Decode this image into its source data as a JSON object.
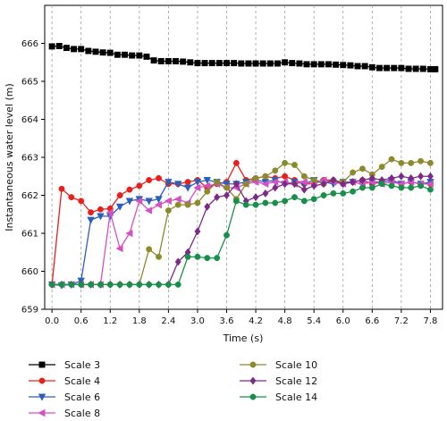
{
  "chart_data": {
    "type": "line",
    "title": "",
    "xlabel": "Time (s)",
    "ylabel": "Instantaneous water level (m)",
    "xlim": [
      -0.15,
      8.05
    ],
    "ylim": [
      659,
      667
    ],
    "xticks": [
      "0.0",
      "0.6",
      "1.2",
      "1.8",
      "2.4",
      "3.0",
      "3.6",
      "4.2",
      "4.8",
      "5.4",
      "6.0",
      "6.6",
      "7.2",
      "7.8"
    ],
    "yticks": [
      "659",
      "660",
      "661",
      "662",
      "663",
      "664",
      "665",
      "666"
    ],
    "grid": "vertical dashed",
    "legend_position": "bottom",
    "series": [
      {
        "name": "Scale 3",
        "color": "#000000",
        "marker": "square",
        "x": [
          0.0,
          0.15,
          0.3,
          0.45,
          0.6,
          0.75,
          0.9,
          1.05,
          1.2,
          1.35,
          1.5,
          1.65,
          1.8,
          1.95,
          2.1,
          2.25,
          2.4,
          2.55,
          2.7,
          2.85,
          3.0,
          3.15,
          3.3,
          3.45,
          3.6,
          3.75,
          3.9,
          4.05,
          4.2,
          4.35,
          4.5,
          4.65,
          4.8,
          4.95,
          5.1,
          5.25,
          5.4,
          5.55,
          5.7,
          5.85,
          6.0,
          6.15,
          6.3,
          6.45,
          6.6,
          6.75,
          6.9,
          7.05,
          7.2,
          7.35,
          7.5,
          7.65,
          7.8,
          7.9
        ],
        "y": [
          665.92,
          665.93,
          665.88,
          665.85,
          665.85,
          665.8,
          665.78,
          665.76,
          665.75,
          665.7,
          665.7,
          665.68,
          665.68,
          665.65,
          665.55,
          665.53,
          665.53,
          665.53,
          665.52,
          665.5,
          665.48,
          665.48,
          665.48,
          665.48,
          665.48,
          665.48,
          665.47,
          665.47,
          665.47,
          665.47,
          665.47,
          665.47,
          665.5,
          665.48,
          665.47,
          665.45,
          665.45,
          665.45,
          665.45,
          665.44,
          665.43,
          665.42,
          665.4,
          665.4,
          665.37,
          665.35,
          665.35,
          665.35,
          665.35,
          665.33,
          665.33,
          665.33,
          665.32,
          665.32
        ]
      },
      {
        "name": "Scale 4",
        "color": "#e8201c",
        "marker": "circle",
        "x": [
          0.0,
          0.2,
          0.4,
          0.6,
          0.8,
          1.0,
          1.2,
          1.4,
          1.6,
          1.8,
          2.0,
          2.2,
          2.4,
          2.6,
          2.8,
          3.0,
          3.2,
          3.4,
          3.6,
          3.8,
          4.0,
          4.2,
          4.4,
          4.6,
          4.8,
          5.0,
          5.2,
          5.4,
          5.6,
          5.8,
          6.0,
          6.2,
          6.4,
          6.6,
          6.8,
          7.0,
          7.2,
          7.4,
          7.6,
          7.8
        ],
        "y": [
          659.65,
          662.17,
          661.95,
          661.85,
          661.55,
          661.63,
          661.65,
          662.0,
          662.15,
          662.25,
          662.4,
          662.45,
          662.3,
          662.3,
          662.35,
          662.4,
          662.2,
          662.3,
          662.35,
          662.85,
          662.4,
          662.45,
          662.5,
          662.45,
          662.5,
          662.4,
          662.3,
          662.3,
          662.4,
          662.4,
          662.3,
          662.35,
          662.4,
          662.3,
          662.35,
          662.4,
          662.3,
          662.35,
          662.3,
          662.3
        ]
      },
      {
        "name": "Scale 6",
        "color": "#2b5fbd",
        "marker": "triangle-down",
        "x": [
          0.0,
          0.2,
          0.4,
          0.6,
          0.8,
          1.0,
          1.2,
          1.4,
          1.6,
          1.8,
          2.0,
          2.2,
          2.4,
          2.6,
          2.8,
          3.0,
          3.2,
          3.4,
          3.6,
          3.8,
          4.0,
          4.2,
          4.4,
          4.6,
          4.8,
          5.0,
          5.2,
          5.4,
          5.6,
          5.8,
          6.0,
          6.2,
          6.4,
          6.6,
          6.8,
          7.0,
          7.2,
          7.4,
          7.6,
          7.8
        ],
        "y": [
          659.65,
          659.63,
          659.65,
          659.75,
          661.35,
          661.45,
          661.45,
          661.7,
          661.85,
          661.9,
          661.85,
          661.9,
          662.35,
          662.3,
          662.2,
          662.35,
          662.4,
          662.35,
          662.3,
          662.3,
          662.35,
          662.4,
          662.35,
          662.4,
          662.3,
          662.35,
          662.3,
          662.4,
          662.35,
          662.3,
          662.35,
          662.35,
          662.3,
          662.35,
          662.35,
          662.4,
          662.3,
          662.35,
          662.3,
          662.35
        ]
      },
      {
        "name": "Scale 8",
        "color": "#d64fc3",
        "marker": "triangle-left",
        "x": [
          0.0,
          0.2,
          0.4,
          0.6,
          0.8,
          1.0,
          1.2,
          1.4,
          1.6,
          1.8,
          2.0,
          2.2,
          2.4,
          2.6,
          2.8,
          3.0,
          3.2,
          3.4,
          3.6,
          3.8,
          4.0,
          4.2,
          4.4,
          4.6,
          4.8,
          5.0,
          5.2,
          5.4,
          5.6,
          5.8,
          6.0,
          6.2,
          6.4,
          6.6,
          6.8,
          7.0,
          7.2,
          7.4,
          7.6,
          7.8
        ],
        "y": [
          659.65,
          659.65,
          659.65,
          659.65,
          659.65,
          659.65,
          661.55,
          660.6,
          661.0,
          661.85,
          661.6,
          661.75,
          661.85,
          661.9,
          661.8,
          662.2,
          662.25,
          662.3,
          662.2,
          662.2,
          662.3,
          662.35,
          662.3,
          662.35,
          662.35,
          662.3,
          662.35,
          662.3,
          662.4,
          662.35,
          662.3,
          662.35,
          662.3,
          662.35,
          662.3,
          662.35,
          662.3,
          662.35,
          662.3,
          662.3
        ]
      },
      {
        "name": "Scale 10",
        "color": "#8c8a2a",
        "marker": "circle",
        "x": [
          0.0,
          0.2,
          0.4,
          0.6,
          0.8,
          1.0,
          1.2,
          1.4,
          1.6,
          1.8,
          2.0,
          2.2,
          2.4,
          2.6,
          2.8,
          3.0,
          3.2,
          3.4,
          3.6,
          3.8,
          4.0,
          4.2,
          4.4,
          4.6,
          4.8,
          5.0,
          5.2,
          5.4,
          5.6,
          5.8,
          6.0,
          6.2,
          6.4,
          6.6,
          6.8,
          7.0,
          7.2,
          7.4,
          7.6,
          7.8
        ],
        "y": [
          659.65,
          659.65,
          659.65,
          659.65,
          659.65,
          659.65,
          659.65,
          659.65,
          659.65,
          659.65,
          660.58,
          660.38,
          661.6,
          661.75,
          661.75,
          661.8,
          662.1,
          662.35,
          662.2,
          661.9,
          662.3,
          662.45,
          662.5,
          662.65,
          662.85,
          662.8,
          662.5,
          662.4,
          662.3,
          662.4,
          662.35,
          662.6,
          662.7,
          662.55,
          662.75,
          662.95,
          662.85,
          662.85,
          662.9,
          662.85
        ]
      },
      {
        "name": "Scale 12",
        "color": "#7c2a88",
        "marker": "diamond",
        "x": [
          0.0,
          0.2,
          0.4,
          0.6,
          0.8,
          1.0,
          1.2,
          1.4,
          1.6,
          1.8,
          2.0,
          2.2,
          2.4,
          2.6,
          2.8,
          3.0,
          3.2,
          3.4,
          3.6,
          3.8,
          4.0,
          4.2,
          4.4,
          4.6,
          4.8,
          5.0,
          5.2,
          5.4,
          5.6,
          5.8,
          6.0,
          6.2,
          6.4,
          6.6,
          6.8,
          7.0,
          7.2,
          7.4,
          7.6,
          7.8
        ],
        "y": [
          659.65,
          659.65,
          659.65,
          659.65,
          659.65,
          659.65,
          659.65,
          659.65,
          659.65,
          659.65,
          659.65,
          659.65,
          659.65,
          660.25,
          660.5,
          661.05,
          661.7,
          661.95,
          662.0,
          662.3,
          661.85,
          661.95,
          662.05,
          662.2,
          662.3,
          662.3,
          662.15,
          662.25,
          662.3,
          662.4,
          662.3,
          662.35,
          662.4,
          662.45,
          662.4,
          662.45,
          662.5,
          662.45,
          662.5,
          662.5
        ]
      },
      {
        "name": "Scale 14",
        "color": "#17904a",
        "marker": "circle",
        "x": [
          0.0,
          0.2,
          0.4,
          0.6,
          0.8,
          1.0,
          1.2,
          1.4,
          1.6,
          1.8,
          2.0,
          2.2,
          2.4,
          2.6,
          2.8,
          3.0,
          3.2,
          3.4,
          3.6,
          3.8,
          4.0,
          4.2,
          4.4,
          4.6,
          4.8,
          5.0,
          5.2,
          5.4,
          5.6,
          5.8,
          6.0,
          6.2,
          6.4,
          6.6,
          6.8,
          7.0,
          7.2,
          7.4,
          7.6,
          7.8
        ],
        "y": [
          659.65,
          659.65,
          659.65,
          659.65,
          659.65,
          659.65,
          659.65,
          659.65,
          659.65,
          659.65,
          659.65,
          659.65,
          659.65,
          659.65,
          660.38,
          660.38,
          660.35,
          660.35,
          660.95,
          661.85,
          661.75,
          661.75,
          661.8,
          661.8,
          661.85,
          661.95,
          661.85,
          661.9,
          662.0,
          662.05,
          662.05,
          662.1,
          662.2,
          662.2,
          662.3,
          662.25,
          662.2,
          662.2,
          662.25,
          662.15
        ]
      }
    ]
  }
}
